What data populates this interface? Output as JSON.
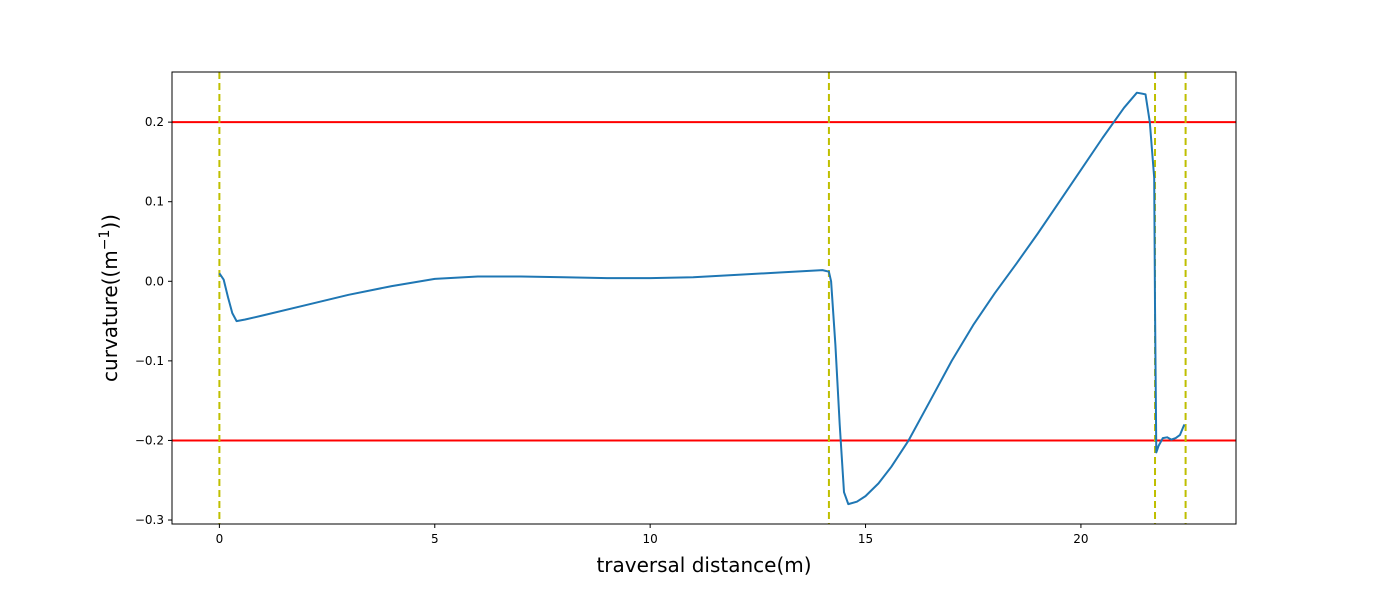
{
  "chart_data": {
    "type": "line",
    "title": "",
    "xlabel": "traversal distance(m)",
    "ylabel_prefix": "curvature((m",
    "ylabel_sup": "−1",
    "ylabel_suffix": "))",
    "xlim": [
      -1.1,
      23.6
    ],
    "ylim": [
      -0.305,
      0.263
    ],
    "x_ticks": [
      0,
      5,
      10,
      15,
      20
    ],
    "x_tick_labels": [
      "0",
      "5",
      "10",
      "15",
      "20"
    ],
    "y_ticks": [
      -0.3,
      -0.2,
      -0.1,
      0.0,
      0.1,
      0.2
    ],
    "y_tick_labels": [
      "−0.3",
      "−0.2",
      "−0.1",
      "0.0",
      "0.1",
      "0.2"
    ],
    "grid": false,
    "series": [
      {
        "color": "#1f77b4",
        "x": [
          0.0,
          0.1,
          0.2,
          0.3,
          0.4,
          0.6,
          1.0,
          2.0,
          3.0,
          4.0,
          5.0,
          6.0,
          7.0,
          8.0,
          9.0,
          10.0,
          11.0,
          12.0,
          13.0,
          14.0,
          14.15,
          14.2,
          14.3,
          14.4,
          14.5,
          14.6,
          14.8,
          15.0,
          15.3,
          15.6,
          16.0,
          16.5,
          17.0,
          17.5,
          18.0,
          18.5,
          19.0,
          19.5,
          20.0,
          20.5,
          21.0,
          21.3,
          21.5,
          21.6,
          21.7,
          21.72,
          21.75,
          21.8,
          21.9,
          22.0,
          22.1,
          22.2,
          22.3,
          22.4
        ],
        "y": [
          0.01,
          0.002,
          -0.02,
          -0.04,
          -0.05,
          -0.048,
          -0.043,
          -0.03,
          -0.017,
          -0.006,
          0.003,
          0.006,
          0.006,
          0.005,
          0.004,
          0.004,
          0.005,
          0.008,
          0.011,
          0.014,
          0.012,
          0.0,
          -0.08,
          -0.18,
          -0.265,
          -0.28,
          -0.277,
          -0.27,
          -0.254,
          -0.233,
          -0.2,
          -0.15,
          -0.1,
          -0.055,
          -0.015,
          0.022,
          0.06,
          0.1,
          0.14,
          0.18,
          0.218,
          0.237,
          0.235,
          0.2,
          0.13,
          -0.03,
          -0.215,
          -0.207,
          -0.197,
          -0.196,
          -0.199,
          -0.197,
          -0.193,
          -0.18
        ]
      }
    ],
    "hlines": [
      {
        "y": 0.2,
        "color": "#ff0000"
      },
      {
        "y": -0.2,
        "color": "#ff0000"
      }
    ],
    "vlines": [
      {
        "x": 0.0,
        "color": "#bfbf00"
      },
      {
        "x": 14.15,
        "color": "#bfbf00"
      },
      {
        "x": 21.72,
        "color": "#bfbf00"
      },
      {
        "x": 22.43,
        "color": "#bfbf00"
      }
    ]
  }
}
